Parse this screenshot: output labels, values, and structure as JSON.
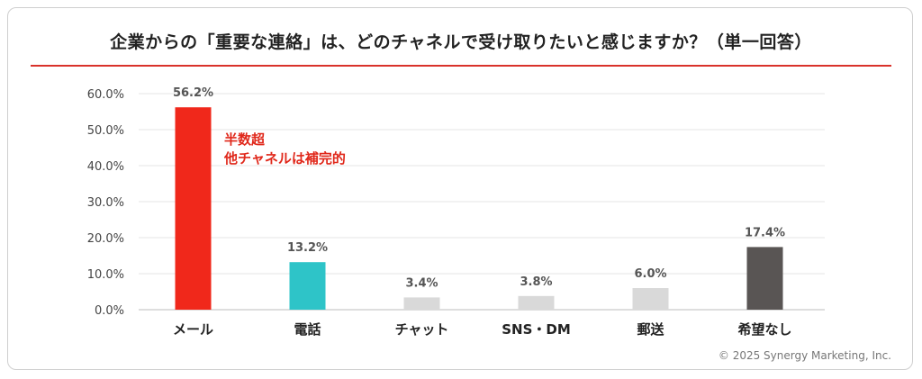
{
  "title": "企業からの「重要な連絡」は、どのチャネルで受け取りたいと感じますか？（単一回答）",
  "copyright": "© 2025 Synergy Marketing, Inc.",
  "chart_data": {
    "type": "bar",
    "categories": [
      "メール",
      "電話",
      "チャット",
      "SNS・DM",
      "郵送",
      "希望なし"
    ],
    "values": [
      56.2,
      13.2,
      3.4,
      3.8,
      6.0,
      17.4
    ],
    "value_labels": [
      "56.2%",
      "13.2%",
      "3.4%",
      "3.8%",
      "6.0%",
      "17.4%"
    ],
    "colors": [
      "#f0281b",
      "#2ec4c8",
      "#d9d9d9",
      "#d9d9d9",
      "#d9d9d9",
      "#595554"
    ],
    "ylim": [
      0,
      60
    ],
    "yticks": [
      "0.0%",
      "10.0%",
      "20.0%",
      "30.0%",
      "40.0%",
      "50.0%",
      "60.0%"
    ],
    "grid": true,
    "annotation": {
      "lines": [
        "半数超",
        "他チャネルは補完的"
      ],
      "color": "#e0281b"
    }
  }
}
